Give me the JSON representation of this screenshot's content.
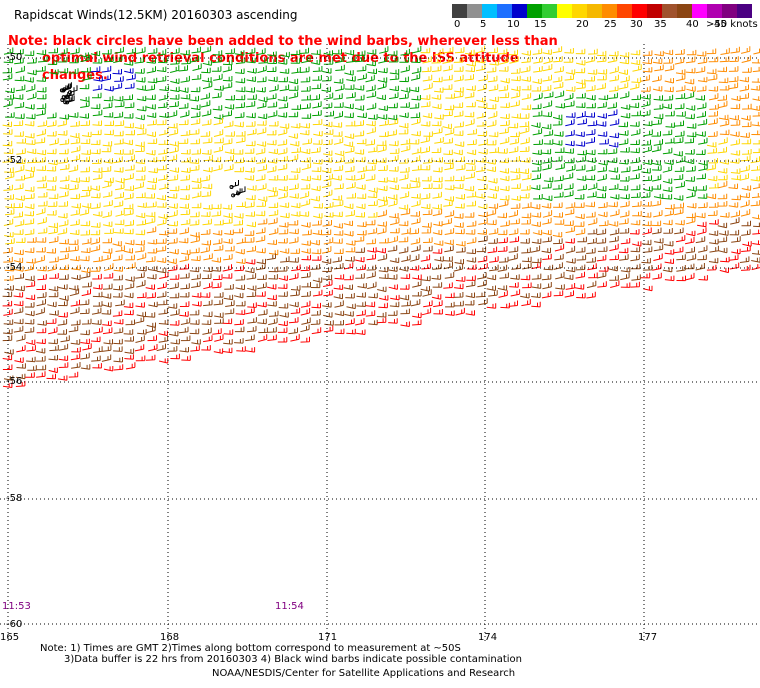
{
  "title": "Rapidscat Winds(12.5KM) 20160303 ascending",
  "legend": {
    "colors": [
      "#404040",
      "#909090",
      "#00bfff",
      "#1e6fff",
      "#0000cd",
      "#00a000",
      "#32cd32",
      "#ffff00",
      "#ffd700",
      "#f5b800",
      "#ff8c00",
      "#ff4500",
      "#ff0000",
      "#c00000",
      "#a0522d",
      "#8b4513",
      "#ff00ff",
      "#b000b0",
      "#800080",
      "#4b0082"
    ],
    "labels": [
      "0",
      "5",
      "10",
      "15",
      "20",
      "25",
      "30",
      "35",
      "40",
      "45",
      ">50 knots"
    ]
  },
  "note": {
    "line1": "Note: black circles have been added to the wind barbs, wherever less than",
    "line2": "optimal wind retrieval conditions are met due to the ISS attitude changes."
  },
  "axes": {
    "lat_labels": [
      "-50",
      "-52",
      "-54",
      "-56",
      "-58",
      "-60"
    ],
    "lon_labels": [
      "165",
      "168",
      "171",
      "174",
      "177"
    ]
  },
  "times": [
    "11:53",
    "11:54"
  ],
  "footnote": {
    "line1": "Note: 1) Times are GMT 2)Times along bottom correspond to measurement at ~50S",
    "line2": "3)Data buffer is 22 hrs from 20160303 4) Black wind barbs indicate possible contamination"
  },
  "credit": "NOAA/NESDIS/Center for Satellite Applications and Research",
  "palette": {
    "blue": "#0000cd",
    "green": "#00a000",
    "yellow": "#ffd700",
    "orange": "#ff8c00",
    "red": "#ff0000",
    "brown": "#8b4513"
  }
}
